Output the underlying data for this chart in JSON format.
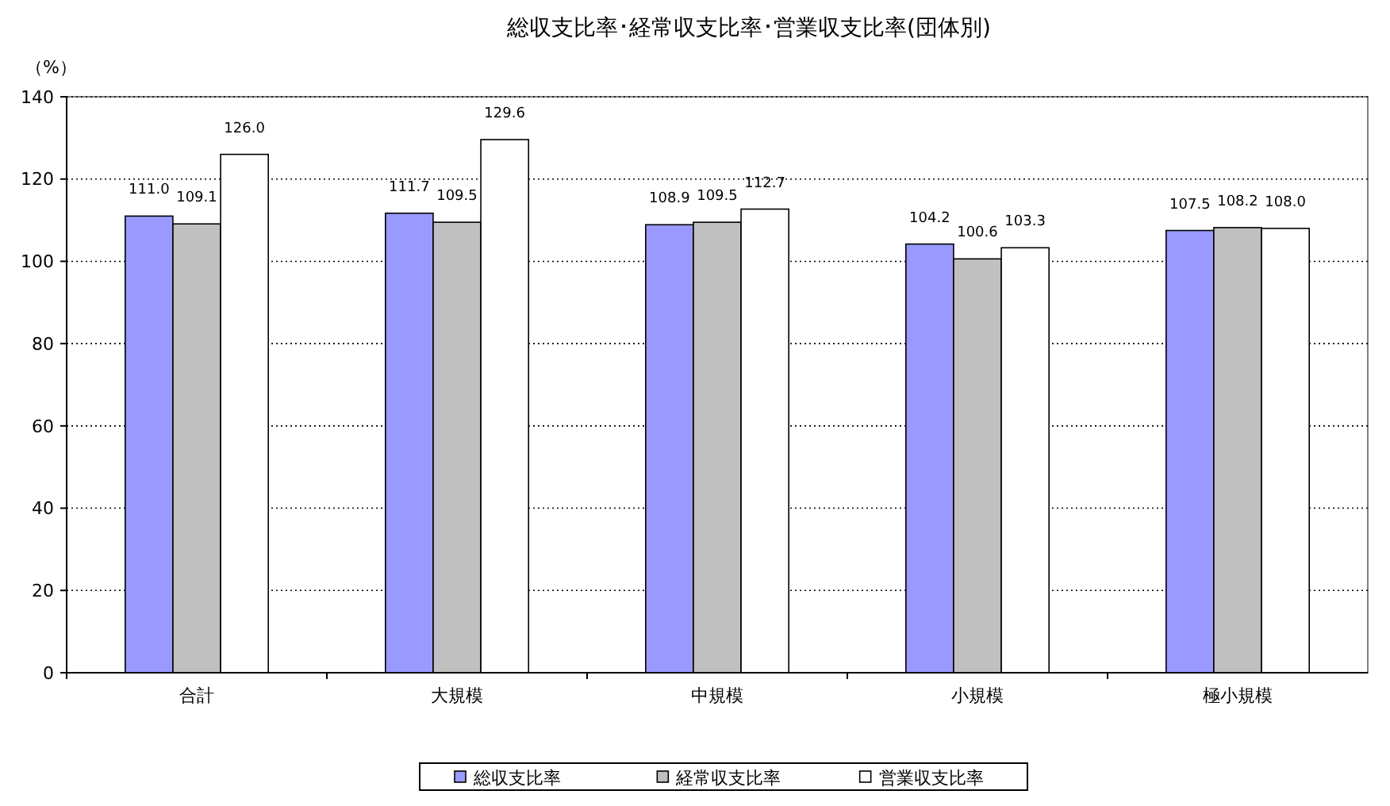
{
  "chart_data": {
    "type": "bar",
    "title": "総収支比率･経常収支比率･営業収支比率(団体別)",
    "ylabel": "（%）",
    "categories": [
      "合計",
      "大規模",
      "中規模",
      "小規模",
      "極小規模"
    ],
    "series": [
      {
        "name": "総収支比率",
        "color": "#9999ff",
        "values": [
          111.0,
          111.7,
          108.9,
          104.2,
          107.5
        ],
        "value_labels": [
          "111.0",
          "111.7",
          "108.9",
          "104.2",
          "107.5"
        ]
      },
      {
        "name": "経常収支比率",
        "color": "#c0c0c0",
        "values": [
          109.1,
          109.5,
          109.5,
          100.6,
          108.2
        ],
        "value_labels": [
          "109.1",
          "109.5",
          "109.5",
          "100.6",
          "108.2"
        ]
      },
      {
        "name": "営業収支比率",
        "color": "#ffffff",
        "values": [
          126.0,
          129.6,
          112.7,
          103.3,
          108.0
        ],
        "value_labels": [
          "126.0",
          "129.6",
          "112.7",
          "103.3",
          "108.0"
        ]
      }
    ],
    "ylim": [
      0,
      140
    ],
    "yticks": [
      0,
      20,
      40,
      60,
      80,
      100,
      120,
      140
    ],
    "grid": "y",
    "legend": "bottom"
  }
}
